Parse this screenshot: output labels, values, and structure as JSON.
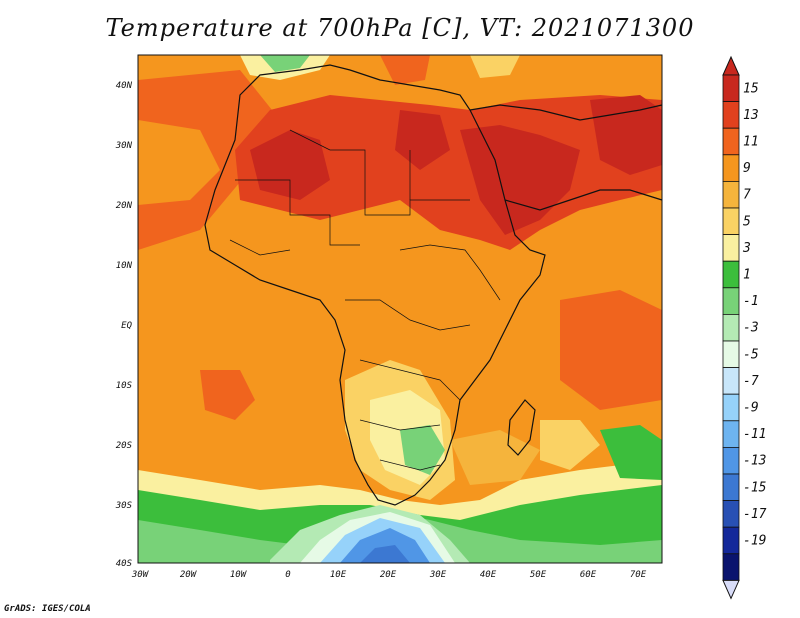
{
  "title": "Temperature at 700hPa [C], VT: 2021071300",
  "footer": "GrADS: IGES/COLA",
  "map": {
    "lat_labels": [
      "40N",
      "30N",
      "20N",
      "10N",
      "EQ",
      "10S",
      "20S",
      "30S",
      "40S"
    ],
    "lon_labels": [
      "30W",
      "20W",
      "10W",
      "0",
      "10E",
      "20E",
      "30E",
      "40E",
      "50E",
      "60E",
      "70E"
    ]
  },
  "colorbar": {
    "labels": [
      "15",
      "13",
      "11",
      "9",
      "7",
      "5",
      "3",
      "1",
      "-1",
      "-3",
      "-5",
      "-7",
      "-9",
      "-11",
      "-13",
      "-15",
      "-17",
      "-19"
    ],
    "colors": [
      "#c8281e",
      "#e1411e",
      "#f0641e",
      "#f5961e",
      "#f5b43c",
      "#fad264",
      "#faf0a0",
      "#3cbe3c",
      "#78d278",
      "#b4eab4",
      "#e6fae6",
      "#c8e6fa",
      "#96d2fa",
      "#6eb4f0",
      "#5096e6",
      "#3c78d2",
      "#2850b4",
      "#14289a",
      "#0a146e"
    ],
    "triangle_top_color": "#c8281e",
    "triangle_bottom_color": "#d8dcf8"
  }
}
